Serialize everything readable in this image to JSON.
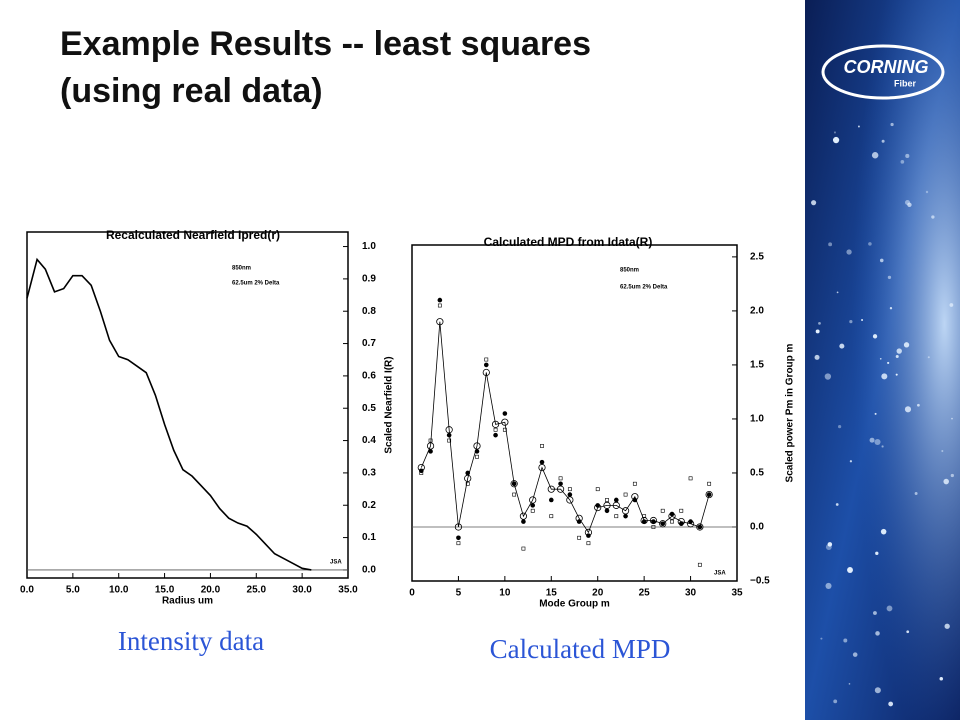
{
  "slide": {
    "title_lines": [
      "Example Results -- least squares",
      "(using real data)"
    ],
    "captions": [
      "Intensity data",
      "Calculated MPD"
    ],
    "logo": {
      "brand": "CORNING",
      "sub": "Fiber"
    }
  },
  "chart_data": [
    {
      "type": "line",
      "title": "Recalculated Nearfield Ipred(r)",
      "x_label": "Radius um",
      "y_label": "Scaled Nearfield I(R)",
      "annotations": [
        "850nm",
        "62.5um 2% Delta",
        "JSA"
      ],
      "xlim": [
        0,
        35
      ],
      "ylim": [
        -0.025,
        1.045
      ],
      "xticks": [
        {
          "value": 0,
          "label": "0.0"
        },
        {
          "value": 5,
          "label": "5.0"
        },
        {
          "value": 10,
          "label": "10.0"
        },
        {
          "value": 15,
          "label": "15.0"
        },
        {
          "value": 20,
          "label": "20.0"
        },
        {
          "value": 25,
          "label": "25.0"
        },
        {
          "value": 30,
          "label": "30.0"
        },
        {
          "value": 35,
          "label": "35.0"
        }
      ],
      "yticks": [
        {
          "value": 0,
          "label": "0.0"
        },
        0.1,
        0.2,
        0.3,
        0.4,
        0.5,
        0.6,
        0.7,
        0.8,
        0.9,
        {
          "value": 1,
          "label": "1.0"
        }
      ],
      "x": [
        0,
        1.1,
        2,
        3,
        4,
        5,
        6,
        7,
        8,
        9,
        10,
        11,
        12,
        13,
        14,
        15,
        16,
        17,
        18,
        19,
        20,
        21,
        22,
        23,
        24,
        25,
        26,
        27,
        28,
        29,
        30,
        31
      ],
      "series": [
        {
          "color": "#000000",
          "line": true,
          "marker": "none",
          "values": [
            0.84,
            0.96,
            0.93,
            0.86,
            0.87,
            0.91,
            0.91,
            0.88,
            0.8,
            0.71,
            0.66,
            0.65,
            0.63,
            0.61,
            0.54,
            0.45,
            0.37,
            0.31,
            0.29,
            0.26,
            0.23,
            0.19,
            0.16,
            0.145,
            0.135,
            0.11,
            0.08,
            0.05,
            0.035,
            0.02,
            0.005,
            0.0
          ]
        }
      ]
    },
    {
      "type": "line",
      "title": "Calculated MPD from Idata(R)",
      "x_label": "Mode Group m",
      "y_label": "Scaled power Pm in Group m",
      "annotations": [
        "850nm",
        "62.5um 2% Delta",
        "JSA"
      ],
      "xlim": [
        0,
        35
      ],
      "ylim": [
        -0.5,
        2.61
      ],
      "xticks": [
        0,
        5,
        10,
        15,
        20,
        25,
        30,
        35
      ],
      "yticks": [
        {
          "value": -0.5,
          "label": "−0.5"
        },
        {
          "value": 0,
          "label": "0.0"
        },
        0.5,
        {
          "value": 1,
          "label": "1.0"
        },
        1.5,
        {
          "value": 2,
          "label": "2.0"
        },
        2.5
      ],
      "x": [
        1,
        2,
        3,
        4,
        5,
        6,
        7,
        8,
        9,
        10,
        11,
        12,
        13,
        14,
        15,
        16,
        17,
        18,
        19,
        20,
        21,
        22,
        23,
        24,
        25,
        26,
        27,
        28,
        29,
        30,
        31,
        32
      ],
      "series": [
        {
          "color": "#000000",
          "line": true,
          "marker": "circle",
          "values": [
            0.55,
            0.75,
            1.9,
            0.9,
            0.0,
            0.45,
            0.75,
            1.43,
            0.95,
            0.97,
            0.4,
            0.1,
            0.25,
            0.55,
            0.35,
            0.35,
            0.25,
            0.08,
            -0.05,
            0.18,
            0.2,
            0.2,
            0.15,
            0.28,
            0.06,
            0.06,
            0.03,
            0.1,
            0.05,
            0.03,
            0.0,
            0.3
          ]
        },
        {
          "color": "#000000",
          "line": false,
          "marker": "dot",
          "values": [
            0.52,
            0.7,
            2.1,
            0.85,
            -0.1,
            0.5,
            0.7,
            1.5,
            0.85,
            1.05,
            0.4,
            0.05,
            0.2,
            0.6,
            0.25,
            0.4,
            0.3,
            0.05,
            -0.08,
            0.2,
            0.15,
            0.25,
            0.1,
            0.25,
            0.05,
            0.05,
            0.03,
            0.12,
            0.03,
            0.05,
            0.0,
            0.3
          ]
        },
        {
          "color": "#000000",
          "line": false,
          "marker": "square",
          "values": [
            0.5,
            0.8,
            2.05,
            0.8,
            -0.15,
            0.4,
            0.65,
            1.55,
            0.9,
            0.9,
            0.3,
            -0.2,
            0.15,
            0.75,
            0.1,
            0.45,
            0.35,
            -0.1,
            -0.15,
            0.35,
            0.25,
            0.1,
            0.3,
            0.4,
            0.1,
            0.0,
            0.15,
            0.05,
            0.15,
            0.45,
            -0.35,
            0.4
          ]
        }
      ]
    }
  ]
}
